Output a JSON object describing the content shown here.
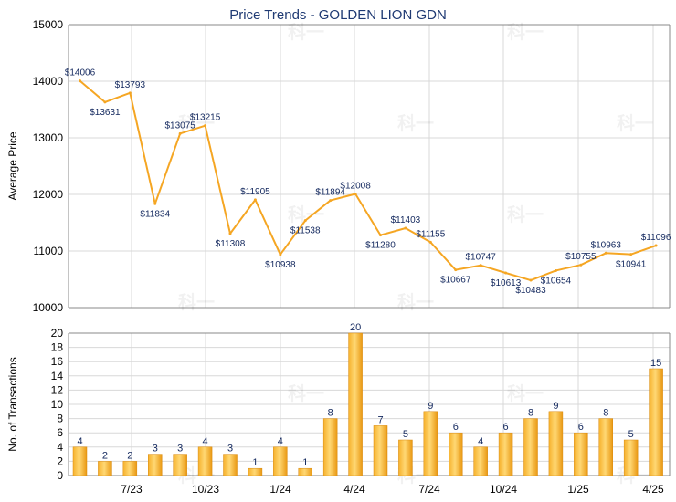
{
  "chart_data": [
    {
      "type": "line",
      "title": "Price Trends - GOLDEN LION GDN",
      "ylabel": "Average Price",
      "ylim": [
        10000,
        15000
      ],
      "yticks": [
        10000,
        11000,
        12000,
        13000,
        14000,
        15000
      ],
      "grid": true,
      "series": [
        {
          "color": "#f5a623",
          "values": [
            14006,
            13631,
            13793,
            11834,
            13075,
            13215,
            11308,
            11905,
            10938,
            11538,
            11894,
            12008,
            11280,
            11403,
            11155,
            10667,
            10747,
            10613,
            10483,
            10654,
            10755,
            10963,
            10941,
            11096
          ],
          "labels": [
            "$14006",
            "$13631",
            "$13793",
            "$11834",
            "$13075",
            "$13215",
            "$11308",
            "$11905",
            "$10938",
            "$11538",
            "$11894",
            "$12008",
            "$11280",
            "$11403",
            "$11155",
            "$10667",
            "$10747",
            "$10613",
            "$10483",
            "$10654",
            "$10755",
            "$10963",
            "$10941",
            "$11096"
          ]
        }
      ]
    },
    {
      "type": "bar",
      "ylabel": "No. of Transactions",
      "ylim": [
        0,
        20
      ],
      "yticks": [
        0,
        2,
        4,
        6,
        8,
        10,
        12,
        14,
        16,
        18,
        20
      ],
      "grid": true,
      "x_tick_labels": [
        "7/23",
        "10/23",
        "1/24",
        "4/24",
        "7/24",
        "10/24",
        "1/25",
        "4/25"
      ],
      "series": [
        {
          "color": "#f0a020",
          "values": [
            4,
            2,
            2,
            3,
            3,
            4,
            3,
            1,
            4,
            1,
            8,
            20,
            7,
            5,
            9,
            6,
            4,
            6,
            8,
            9,
            6,
            8,
            5,
            15
          ]
        }
      ]
    }
  ],
  "watermark": "科一"
}
